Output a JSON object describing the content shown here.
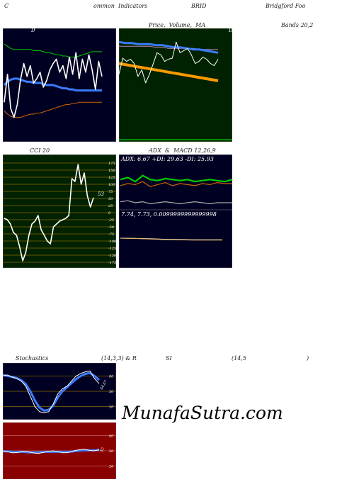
{
  "header": {
    "c": "C",
    "common_indicators": "ommon  Indicators",
    "symbol": "BRID",
    "company": "Bridgford Foo",
    "price_volume_ma": "Price,  Volume,  MA",
    "bands": "Bands 20,2"
  },
  "cci_header": "CCI 20",
  "adx_macd_header": "ADX  &  MACD 12,26,9",
  "stoch_header": {
    "stochastics": "Stochastics",
    "params": "(14,3,3) & R",
    "si": "SI",
    "rsi_params": "(14,5",
    "close_paren": ")"
  },
  "watermark": "MunafaSutra.com",
  "colors": {
    "panel_dark": "#000022",
    "bb_bg": "#002200",
    "cci_bg": "#002200",
    "rsi_bg": "#880000",
    "price_line": "#ffffff",
    "ma_blue": "#3b7bff",
    "ma_green": "#00cc00",
    "ma_orange": "#cc6600",
    "bb_orange": "#ff9900",
    "grid_gold": "#886600"
  },
  "chart_data": [
    {
      "type": "line",
      "panel": "price_volume_ma",
      "series": [
        {
          "values": [
            74,
            100,
            68,
            60,
            72,
            95,
            110,
            98,
            108,
            92,
            96,
            102,
            88,
            94,
            104,
            110,
            114,
            102,
            108,
            96,
            116,
            100,
            120,
            96,
            114,
            102,
            118,
            104,
            86,
            112,
            98
          ]
        },
        {
          "values": [
            90,
            93,
            95,
            96,
            96,
            95,
            94,
            93,
            93,
            92,
            92,
            92,
            91,
            90,
            90,
            90,
            89,
            88,
            87,
            87,
            86,
            86,
            85,
            85,
            85,
            85,
            85,
            85,
            85,
            85,
            85
          ]
        },
        {
          "values": [
            66,
            63,
            61,
            60,
            60,
            60,
            61,
            62,
            63,
            63,
            64,
            64,
            65,
            66,
            67,
            68,
            69,
            70,
            71,
            72,
            72,
            73,
            73,
            74,
            74,
            74,
            74,
            74,
            74,
            74,
            74
          ]
        },
        {
          "values": [
            128,
            126,
            124,
            123,
            123,
            123,
            123,
            123,
            123,
            122,
            122,
            122,
            121,
            120,
            120,
            119,
            118,
            118,
            117,
            117,
            116,
            116,
            116,
            117,
            118,
            119,
            120,
            121,
            121,
            121,
            121
          ]
        }
      ]
    },
    {
      "type": "line",
      "panel": "bollinger_bands",
      "series": [
        {
          "values": [
            60,
            75,
            72,
            74,
            70,
            58,
            64,
            52,
            60,
            70,
            80,
            78,
            72,
            74,
            75,
            90,
            80,
            82,
            84,
            78,
            70,
            72,
            76,
            74,
            70,
            68,
            74
          ]
        },
        {
          "values": [
            70,
            69,
            68,
            67,
            66,
            65,
            64,
            63,
            62,
            61,
            60,
            59,
            58,
            57,
            56,
            55,
            54
          ]
        },
        {
          "values": [
            90,
            89,
            89,
            88,
            88,
            88,
            87,
            87,
            86,
            85,
            85,
            84,
            83,
            83,
            82,
            81,
            80
          ]
        },
        {
          "values": [
            86,
            86,
            86,
            86,
            86,
            86,
            85,
            85,
            84,
            84,
            84,
            84,
            84,
            83,
            83,
            83,
            83
          ]
        }
      ]
    },
    {
      "type": "line",
      "panel": "cci",
      "ylabel_ticks": [
        "175",
        "150",
        "125",
        "100",
        "75",
        "50",
        "25",
        "0",
        "-25",
        "-50",
        "-75",
        "-100",
        "-125",
        "-150",
        "-175"
      ],
      "last_value_label": "53",
      "series": [
        {
          "values": [
            -20,
            -25,
            -40,
            -70,
            -80,
            -120,
            -170,
            -140,
            -80,
            -40,
            -30,
            -10,
            -60,
            -80,
            -100,
            -110,
            -50,
            -40,
            -30,
            -25,
            -20,
            -10,
            120,
            110,
            170,
            100,
            140,
            60,
            20,
            53
          ]
        }
      ]
    },
    {
      "type": "line",
      "panel": "adx",
      "text": "ADX: 6.67 +DI: 29.63 -DI: 25.93",
      "series": [
        {
          "values": [
            30,
            32,
            28,
            34,
            30,
            29,
            31,
            30,
            29,
            30,
            28,
            29,
            30,
            29,
            28,
            30
          ]
        },
        {
          "values": [
            24,
            26,
            25,
            28,
            23,
            25,
            27,
            24,
            26,
            25,
            24,
            26,
            25,
            27,
            26,
            26
          ]
        },
        {
          "values": [
            8,
            9,
            7,
            8,
            6,
            7,
            8,
            7,
            6,
            7,
            8,
            7,
            6,
            7,
            7,
            7
          ]
        }
      ]
    },
    {
      "type": "line",
      "panel": "macd",
      "text": "7.74,  7.73,  0.0099999999999998",
      "series": [
        {
          "values": [
            7.8,
            7.79,
            7.78,
            7.76,
            7.75,
            7.74,
            7.74,
            7.74
          ]
        },
        {
          "values": [
            7.8,
            7.79,
            7.77,
            7.75,
            7.74,
            7.73,
            7.73,
            7.73
          ]
        }
      ]
    },
    {
      "type": "line",
      "panel": "stochastics",
      "ylabel_ticks": [
        "80",
        "50",
        "20"
      ],
      "last_value_label": "64.67",
      "series": [
        {
          "values": [
            80,
            82,
            78,
            75,
            70,
            60,
            40,
            20,
            10,
            8,
            10,
            25,
            45,
            55,
            60,
            70,
            80,
            85,
            88,
            90,
            75,
            65
          ]
        },
        {
          "values": [
            82,
            80,
            78,
            76,
            72,
            64,
            50,
            32,
            18,
            12,
            14,
            22,
            38,
            50,
            58,
            66,
            74,
            80,
            84,
            86,
            80,
            72
          ]
        }
      ]
    },
    {
      "type": "line",
      "panel": "rsi",
      "ylabel_ticks": [
        "80",
        "50",
        "20"
      ],
      "last_value_label": "52",
      "series": [
        {
          "values": [
            50,
            48,
            46,
            47,
            49,
            48,
            46,
            45,
            47,
            49,
            50,
            48,
            46,
            47,
            50,
            52,
            53,
            51,
            50,
            52
          ]
        },
        {
          "values": [
            49,
            49,
            48,
            48,
            48,
            47,
            47,
            47,
            48,
            48,
            48,
            48,
            48,
            48,
            49,
            50,
            51,
            51,
            51,
            52
          ]
        }
      ]
    }
  ]
}
